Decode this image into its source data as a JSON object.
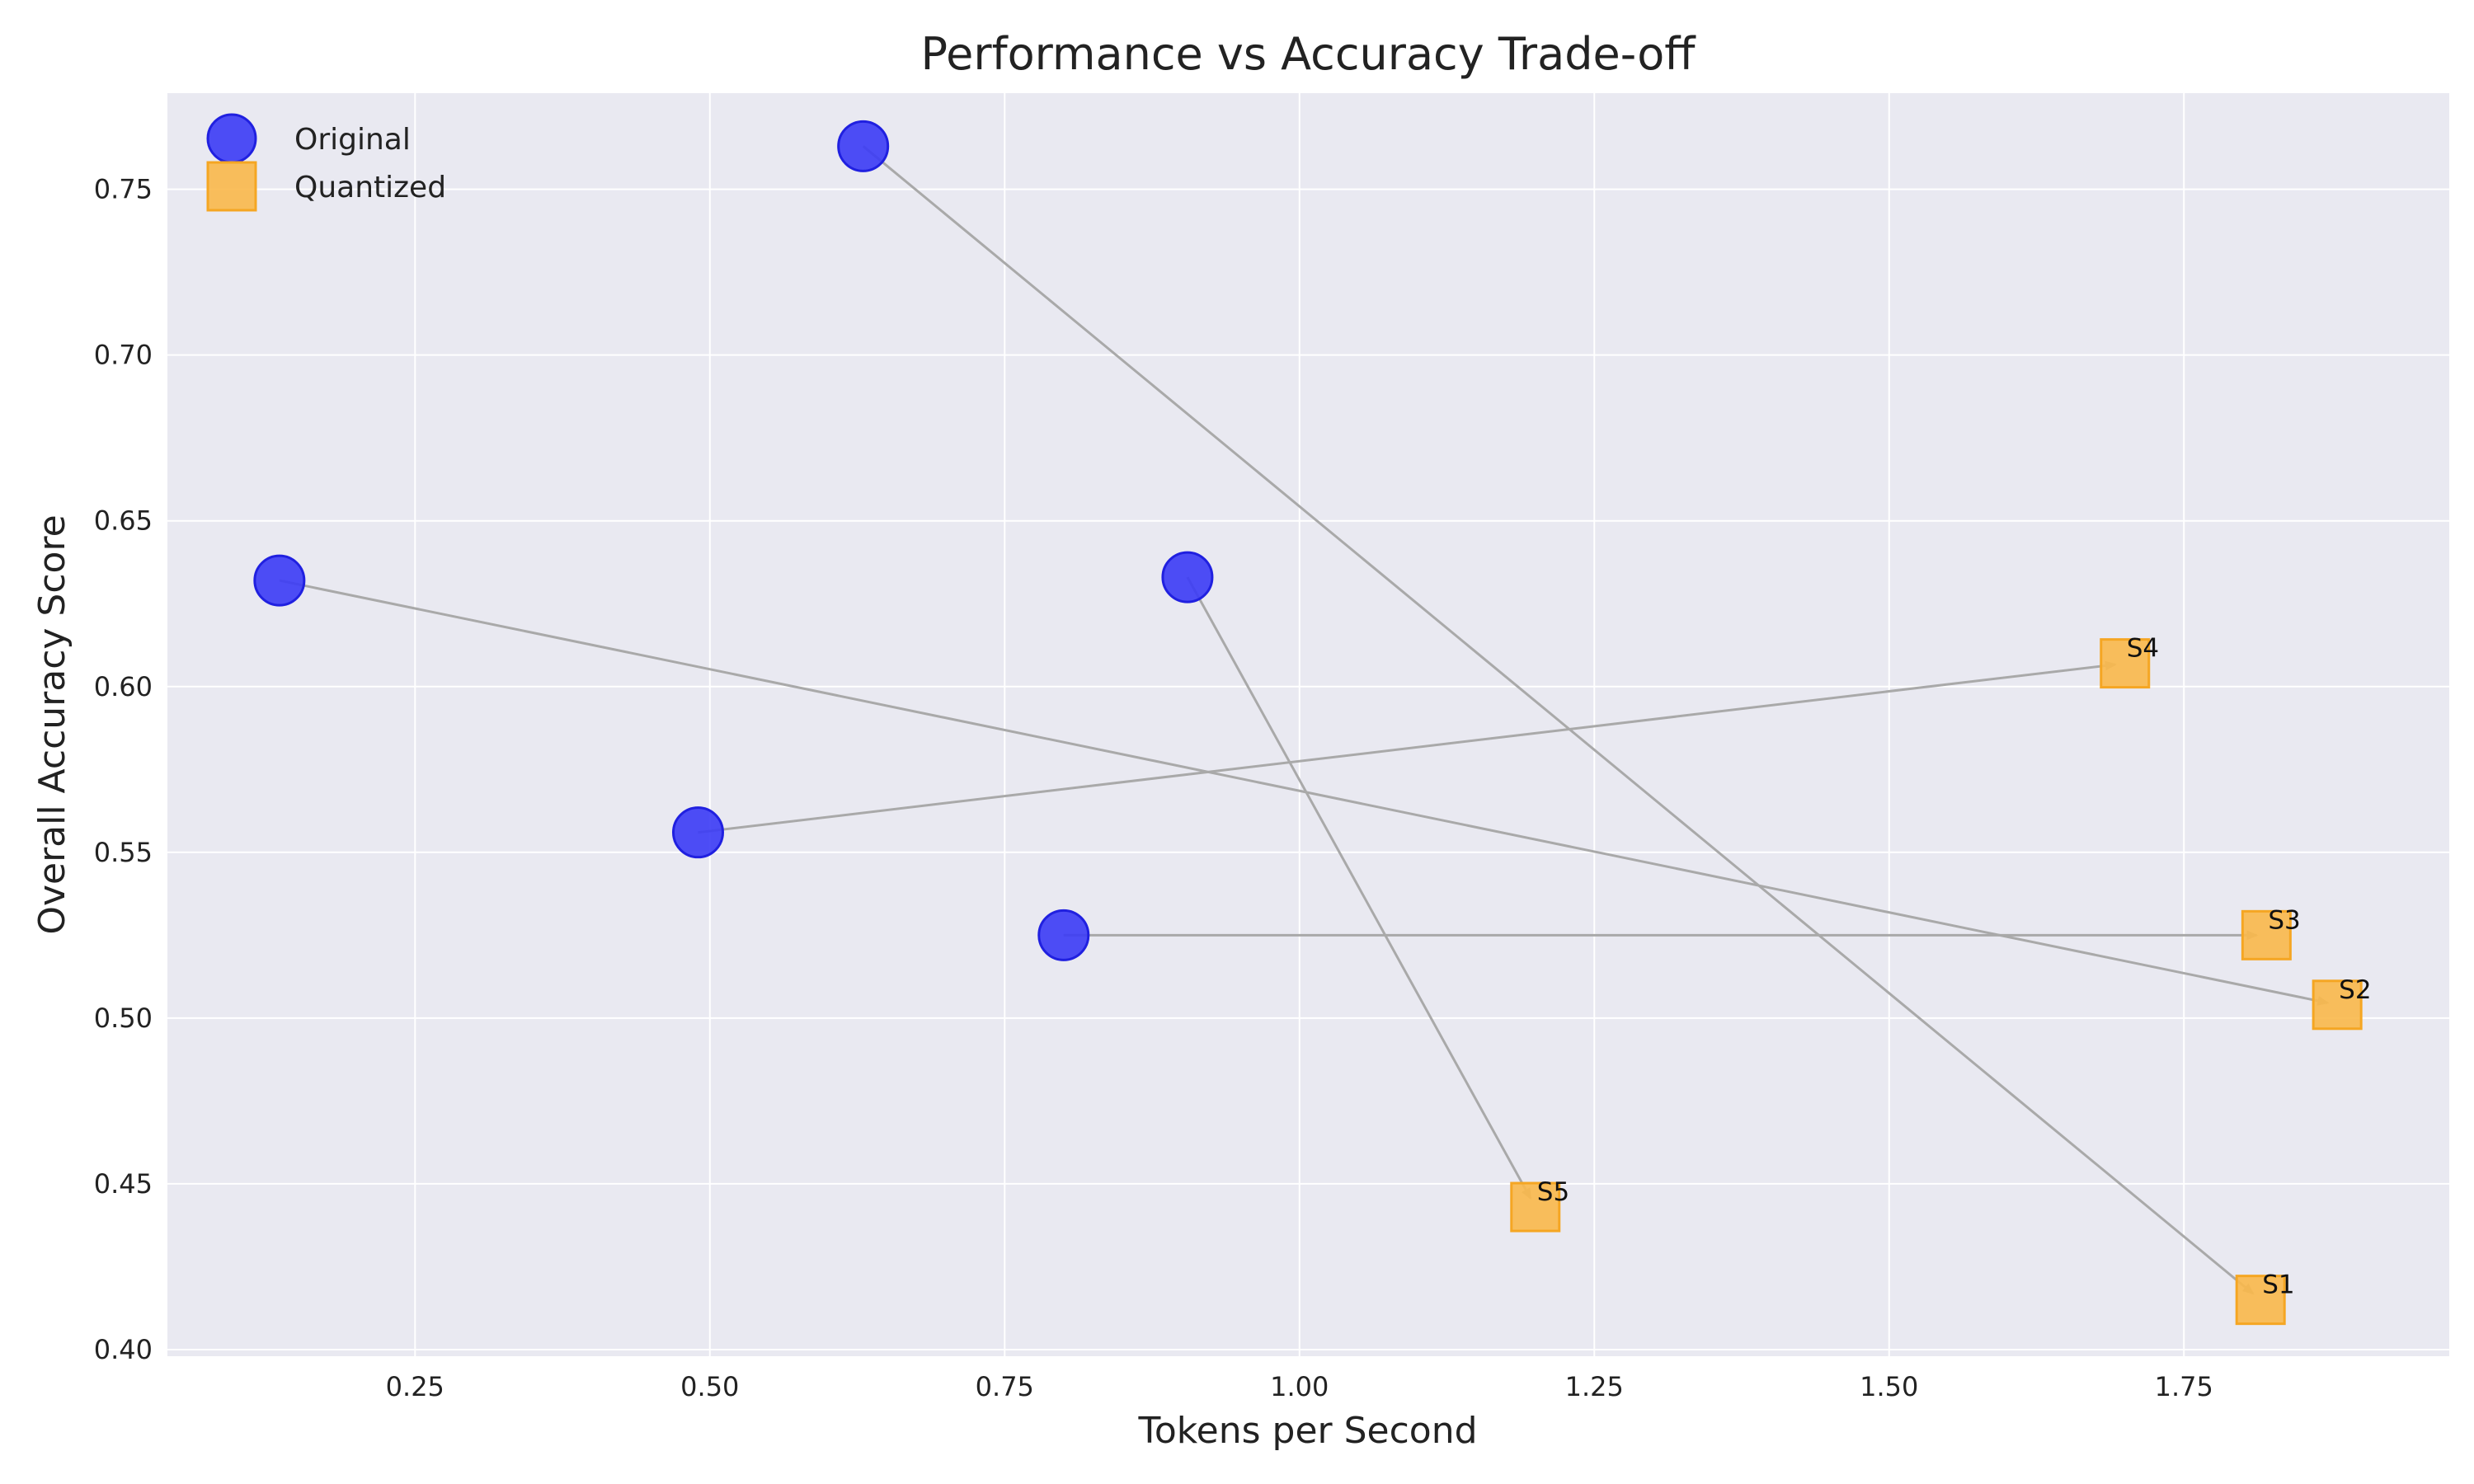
{
  "chart_data": {
    "type": "scatter",
    "title": "Performance vs Accuracy Trade-off",
    "xlabel": "Tokens per Second",
    "ylabel": "Overall Accuracy Score",
    "xlim": [
      0.04,
      1.975
    ],
    "ylim": [
      0.398,
      0.779
    ],
    "xticks": [
      "0.25",
      "0.50",
      "0.75",
      "1.00",
      "1.25",
      "1.50",
      "1.75"
    ],
    "yticks": [
      "0.40",
      "0.45",
      "0.50",
      "0.55",
      "0.60",
      "0.65",
      "0.70",
      "0.75"
    ],
    "grid": true,
    "legend_position": "top-left",
    "colors": {
      "original": "#3b3bf5",
      "quantized": "#f9b84a",
      "arrow": "#a9a9a9",
      "plot_background": "#e9e9f1"
    },
    "series": [
      {
        "name": "Original",
        "marker": "circle",
        "points": [
          {
            "x": 0.63,
            "y": 0.763
          },
          {
            "x": 0.135,
            "y": 0.632
          },
          {
            "x": 0.8,
            "y": 0.525
          },
          {
            "x": 0.49,
            "y": 0.556
          },
          {
            "x": 0.905,
            "y": 0.633
          }
        ]
      },
      {
        "name": "Quantized",
        "marker": "square",
        "points": [
          {
            "x": 1.815,
            "y": 0.415,
            "label": "S1"
          },
          {
            "x": 1.88,
            "y": 0.504,
            "label": "S2"
          },
          {
            "x": 1.82,
            "y": 0.525,
            "label": "S3"
          },
          {
            "x": 1.7,
            "y": 0.607,
            "label": "S4"
          },
          {
            "x": 1.2,
            "y": 0.443,
            "label": "S5"
          }
        ]
      }
    ],
    "arrows": [
      {
        "from": 0,
        "to": 0
      },
      {
        "from": 1,
        "to": 1
      },
      {
        "from": 2,
        "to": 2
      },
      {
        "from": 3,
        "to": 3
      },
      {
        "from": 4,
        "to": 4
      }
    ]
  }
}
